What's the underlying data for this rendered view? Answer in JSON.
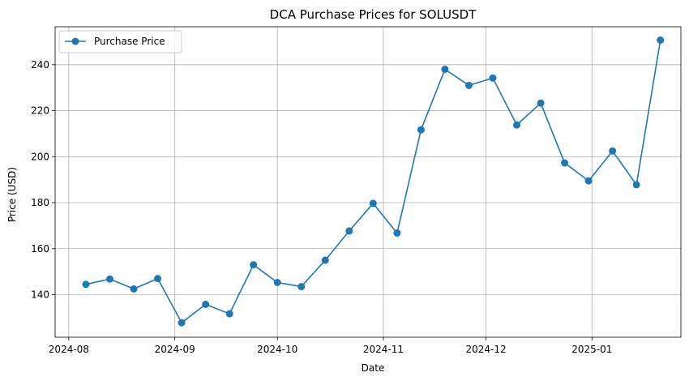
{
  "chart_data": {
    "type": "line",
    "title": "DCA Purchase Prices for SOLUSDT",
    "xlabel": "Date",
    "ylabel": "Price (USD)",
    "grid": true,
    "legend_position": "top-left",
    "ylim": [
      121.5,
      256.5
    ],
    "xlim": [
      "2024-07-28",
      "2025-01-27"
    ],
    "x_ticks": [
      {
        "date": "2024-08-01",
        "label": "2024-08"
      },
      {
        "date": "2024-09-01",
        "label": "2024-09"
      },
      {
        "date": "2024-10-01",
        "label": "2024-10"
      },
      {
        "date": "2024-11-01",
        "label": "2024-11"
      },
      {
        "date": "2024-12-01",
        "label": "2024-12"
      },
      {
        "date": "2025-01-01",
        "label": "2025-01"
      }
    ],
    "y_ticks": [
      140,
      160,
      180,
      200,
      220,
      240
    ],
    "series": [
      {
        "name": "Purchase Price",
        "color": "#1f77b4",
        "marker": "circle",
        "x": [
          "2024-08-06",
          "2024-08-13",
          "2024-08-20",
          "2024-08-27",
          "2024-09-03",
          "2024-09-10",
          "2024-09-17",
          "2024-09-24",
          "2024-10-01",
          "2024-10-08",
          "2024-10-15",
          "2024-10-22",
          "2024-10-29",
          "2024-11-05",
          "2024-11-12",
          "2024-11-19",
          "2024-11-26",
          "2024-12-03",
          "2024-12-10",
          "2024-12-17",
          "2024-12-24",
          "2024-12-31",
          "2025-01-07",
          "2025-01-14",
          "2025-01-21"
        ],
        "values": [
          144.5,
          146.8,
          142.5,
          147.0,
          127.8,
          135.8,
          131.7,
          153.0,
          145.3,
          143.5,
          155.0,
          167.7,
          179.7,
          166.8,
          211.7,
          238.0,
          231.0,
          234.2,
          213.8,
          223.3,
          197.3,
          189.5,
          202.5,
          187.8,
          250.7
        ]
      }
    ]
  }
}
